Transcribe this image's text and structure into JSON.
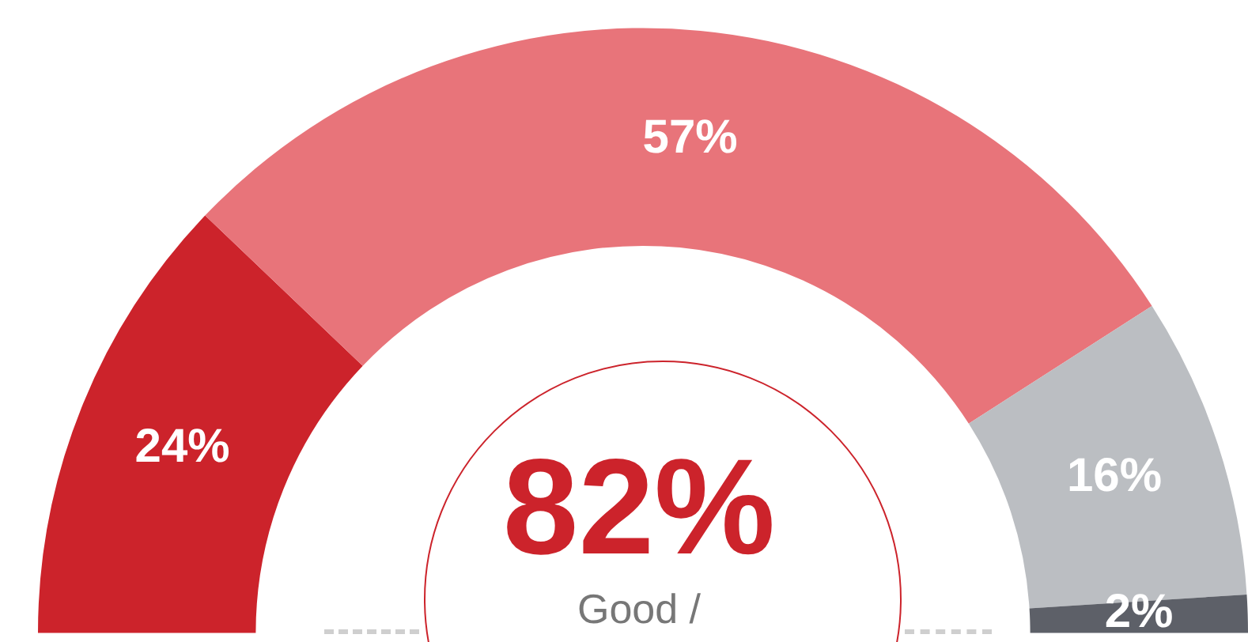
{
  "chart_data": {
    "type": "donut",
    "categories": [
      null,
      null,
      null,
      null
    ],
    "values": [
      24,
      57,
      16,
      2
    ],
    "colors": [
      "#cc232b",
      "#e8747a",
      "#bbbec2",
      "#5d6068"
    ],
    "value_labels": [
      "24%",
      "57%",
      "16%",
      "2%"
    ],
    "annotations": [
      "82%",
      "Good /"
    ]
  }
}
